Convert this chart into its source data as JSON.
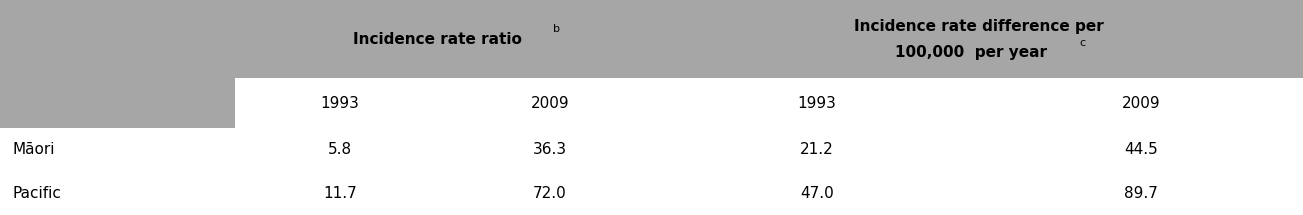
{
  "col_header_row1_left": "Incidence rate ratio",
  "col_header_row1_left_sup": "b",
  "col_header_row1_right_line1": "Incidence rate difference per",
  "col_header_row1_right_line2": "100,000  per year",
  "col_header_row1_right_sup": "c",
  "col_header_row2": [
    "1993",
    "2009",
    "1993",
    "2009"
  ],
  "rows": [
    [
      "Māori",
      "5.8",
      "36.3",
      "21.2",
      "44.5"
    ],
    [
      "Pacific",
      "11.7",
      "72.0",
      "47.0",
      "89.7"
    ]
  ],
  "header_bg": "#a6a6a6",
  "header_text_color": "#000000",
  "cell_bg": "#ffffff",
  "grid_color": "#000000",
  "text_color": "#000000",
  "figwidth": 13.03,
  "figheight": 2.15,
  "dpi": 100
}
